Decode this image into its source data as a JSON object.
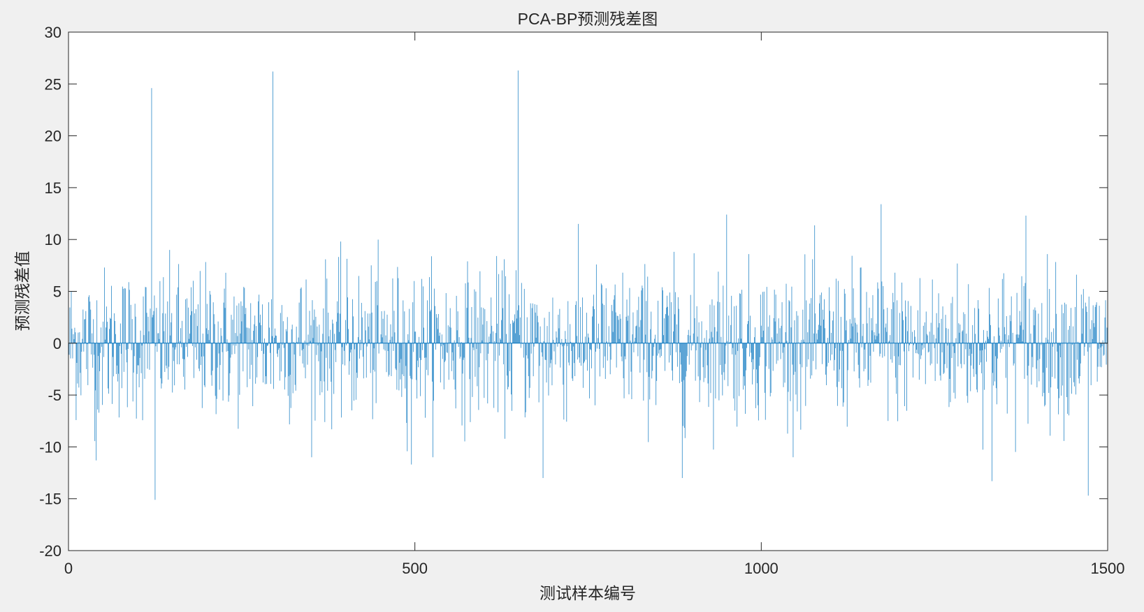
{
  "figure_background": "#f0f0f0",
  "axes_background": "#ffffff",
  "series_color": "#0072bd",
  "chart_data": {
    "type": "bar",
    "title": "PCA-BP预测残差图",
    "xlabel": "测试样本编号",
    "ylabel": "预测残差值",
    "xlim": [
      0,
      1500
    ],
    "ylim": [
      -20,
      30
    ],
    "xticks": [
      0,
      500,
      1000,
      1500
    ],
    "yticks": [
      -20,
      -15,
      -10,
      -5,
      0,
      5,
      10,
      15,
      20,
      25,
      30
    ],
    "grid": false,
    "legend": "none",
    "n_samples": 1500,
    "series": [
      {
        "peaks": [
          {
            "x": 120,
            "y": 24.6
          },
          {
            "x": 125,
            "y": -15.1
          },
          {
            "x": 295,
            "y": 26.2
          },
          {
            "x": 649,
            "y": 26.3
          },
          {
            "x": 1173,
            "y": 13.4
          },
          {
            "x": 950,
            "y": 12.4
          },
          {
            "x": 1382,
            "y": 12.3
          },
          {
            "x": 1333,
            "y": -13.3
          },
          {
            "x": 1472,
            "y": -14.7
          },
          {
            "x": 685,
            "y": -13.0
          },
          {
            "x": 886,
            "y": -13.0
          },
          {
            "x": 495,
            "y": -11.7
          },
          {
            "x": 40,
            "y": -11.3
          }
        ]
      }
    ]
  }
}
